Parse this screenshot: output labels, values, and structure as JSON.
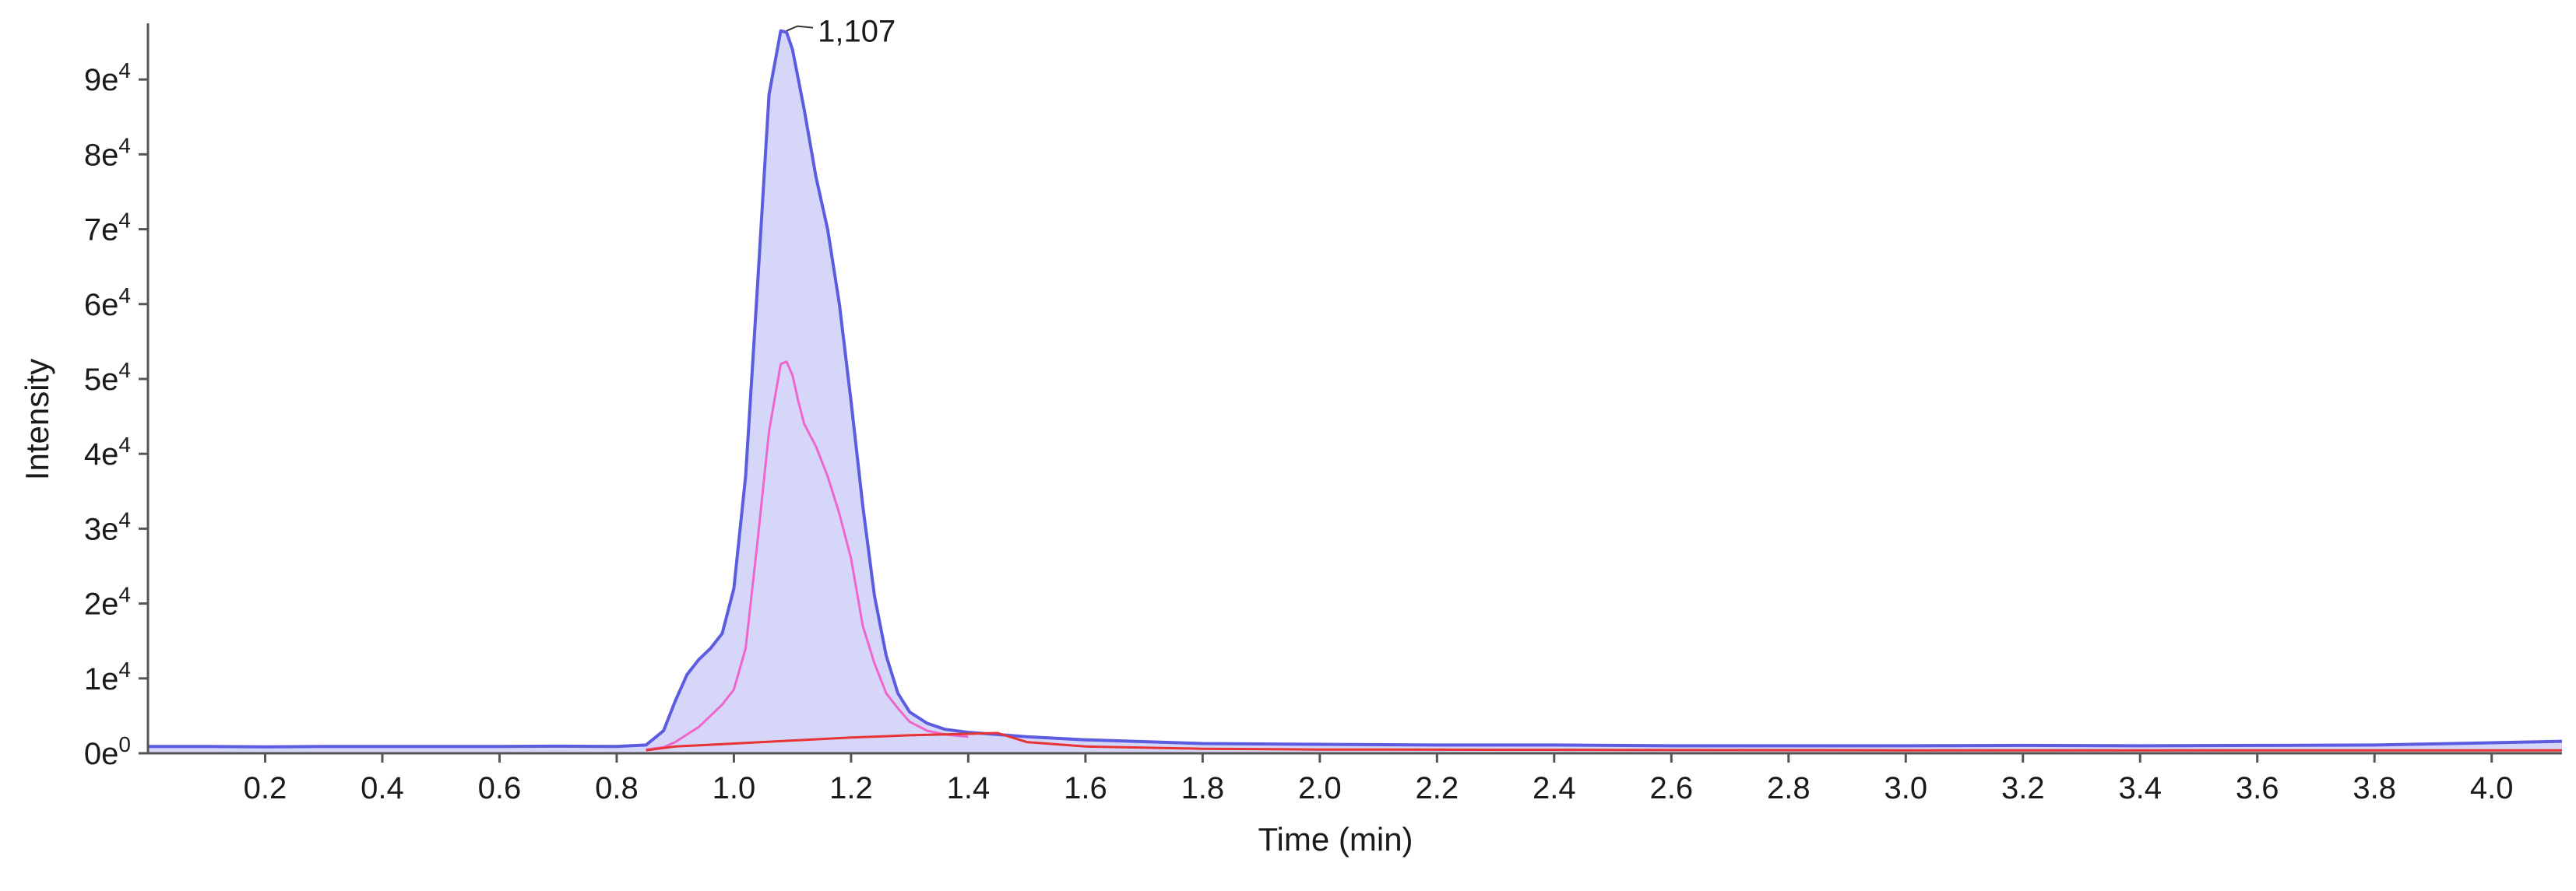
{
  "chart_data": {
    "type": "area",
    "xlabel": "Time (min)",
    "ylabel": "Intensity",
    "xlim": [
      0.0,
      4.12
    ],
    "ylim": [
      0,
      97500
    ],
    "x_ticks": [
      {
        "value": 0.2,
        "label": "0.2"
      },
      {
        "value": 0.4,
        "label": "0.4"
      },
      {
        "value": 0.6,
        "label": "0.6"
      },
      {
        "value": 0.8,
        "label": "0.8"
      },
      {
        "value": 1.0,
        "label": "1.0"
      },
      {
        "value": 1.2,
        "label": "1.2"
      },
      {
        "value": 1.4,
        "label": "1.4"
      },
      {
        "value": 1.6,
        "label": "1.6"
      },
      {
        "value": 1.8,
        "label": "1.8"
      },
      {
        "value": 2.0,
        "label": "2.0"
      },
      {
        "value": 2.2,
        "label": "2.2"
      },
      {
        "value": 2.4,
        "label": "2.4"
      },
      {
        "value": 2.6,
        "label": "2.6"
      },
      {
        "value": 2.8,
        "label": "2.8"
      },
      {
        "value": 3.0,
        "label": "3.0"
      },
      {
        "value": 3.2,
        "label": "3.2"
      },
      {
        "value": 3.4,
        "label": "3.4"
      },
      {
        "value": 3.6,
        "label": "3.6"
      },
      {
        "value": 3.8,
        "label": "3.8"
      },
      {
        "value": 4.0,
        "label": "4.0"
      }
    ],
    "y_ticks": [
      {
        "value": 0,
        "base": "0e",
        "exp": "0"
      },
      {
        "value": 10000,
        "base": "1e",
        "exp": "4"
      },
      {
        "value": 20000,
        "base": "2e",
        "exp": "4"
      },
      {
        "value": 30000,
        "base": "3e",
        "exp": "4"
      },
      {
        "value": 40000,
        "base": "4e",
        "exp": "4"
      },
      {
        "value": 50000,
        "base": "5e",
        "exp": "4"
      },
      {
        "value": 60000,
        "base": "6e",
        "exp": "4"
      },
      {
        "value": 70000,
        "base": "7e",
        "exp": "4"
      },
      {
        "value": 80000,
        "base": "8e",
        "exp": "4"
      },
      {
        "value": 90000,
        "base": "9e",
        "exp": "4"
      }
    ],
    "grid": false,
    "legend": "none",
    "series": [
      {
        "color": "#5c5ce0",
        "fill": "#c8c8f5",
        "x": [
          0.0,
          0.1,
          0.2,
          0.3,
          0.4,
          0.5,
          0.6,
          0.7,
          0.8,
          0.85,
          0.88,
          0.9,
          0.92,
          0.94,
          0.96,
          0.98,
          1.0,
          1.02,
          1.04,
          1.06,
          1.08,
          1.09,
          1.1,
          1.12,
          1.14,
          1.16,
          1.18,
          1.2,
          1.22,
          1.24,
          1.26,
          1.28,
          1.3,
          1.33,
          1.36,
          1.4,
          1.45,
          1.5,
          1.6,
          1.8,
          2.0,
          2.2,
          2.4,
          2.6,
          2.8,
          3.0,
          3.2,
          3.4,
          3.6,
          3.8,
          4.0,
          4.12
        ],
        "y": [
          900,
          900,
          850,
          900,
          900,
          900,
          900,
          950,
          900,
          1100,
          3000,
          7000,
          10500,
          12500,
          14000,
          16000,
          22000,
          37000,
          62000,
          88000,
          96500,
          96300,
          94000,
          86000,
          77000,
          70000,
          60000,
          47000,
          33000,
          21000,
          13000,
          8000,
          5500,
          4000,
          3200,
          2800,
          2500,
          2200,
          1800,
          1300,
          1200,
          1100,
          1100,
          1000,
          1000,
          1000,
          1050,
          1000,
          1050,
          1100,
          1400,
          1600
        ]
      },
      {
        "color": "#ee66cc",
        "fill": "none",
        "x": [
          0.85,
          0.88,
          0.9,
          0.92,
          0.94,
          0.96,
          0.98,
          1.0,
          1.02,
          1.04,
          1.06,
          1.08,
          1.09,
          1.1,
          1.11,
          1.12,
          1.14,
          1.16,
          1.18,
          1.2,
          1.22,
          1.24,
          1.26,
          1.28,
          1.3,
          1.33,
          1.36,
          1.4
        ],
        "y": [
          500,
          800,
          1500,
          2500,
          3500,
          5000,
          6500,
          8500,
          14000,
          28000,
          43000,
          52000,
          52300,
          50500,
          47000,
          44000,
          41000,
          37000,
          32000,
          26000,
          17000,
          12000,
          8000,
          6000,
          4200,
          3000,
          2500,
          2200
        ]
      },
      {
        "color": "#e63333",
        "fill": "none",
        "x": [
          0.85,
          0.9,
          1.0,
          1.1,
          1.2,
          1.3,
          1.4,
          1.45,
          1.5,
          1.6,
          1.8,
          2.0,
          2.5,
          3.0,
          3.5,
          4.12
        ],
        "y": [
          400,
          900,
          1300,
          1700,
          2100,
          2400,
          2600,
          2700,
          1500,
          900,
          600,
          500,
          450,
          400,
          400,
          400
        ]
      }
    ],
    "annotations": [
      {
        "x": 1.09,
        "y": 96500,
        "text": "1,107"
      }
    ]
  }
}
